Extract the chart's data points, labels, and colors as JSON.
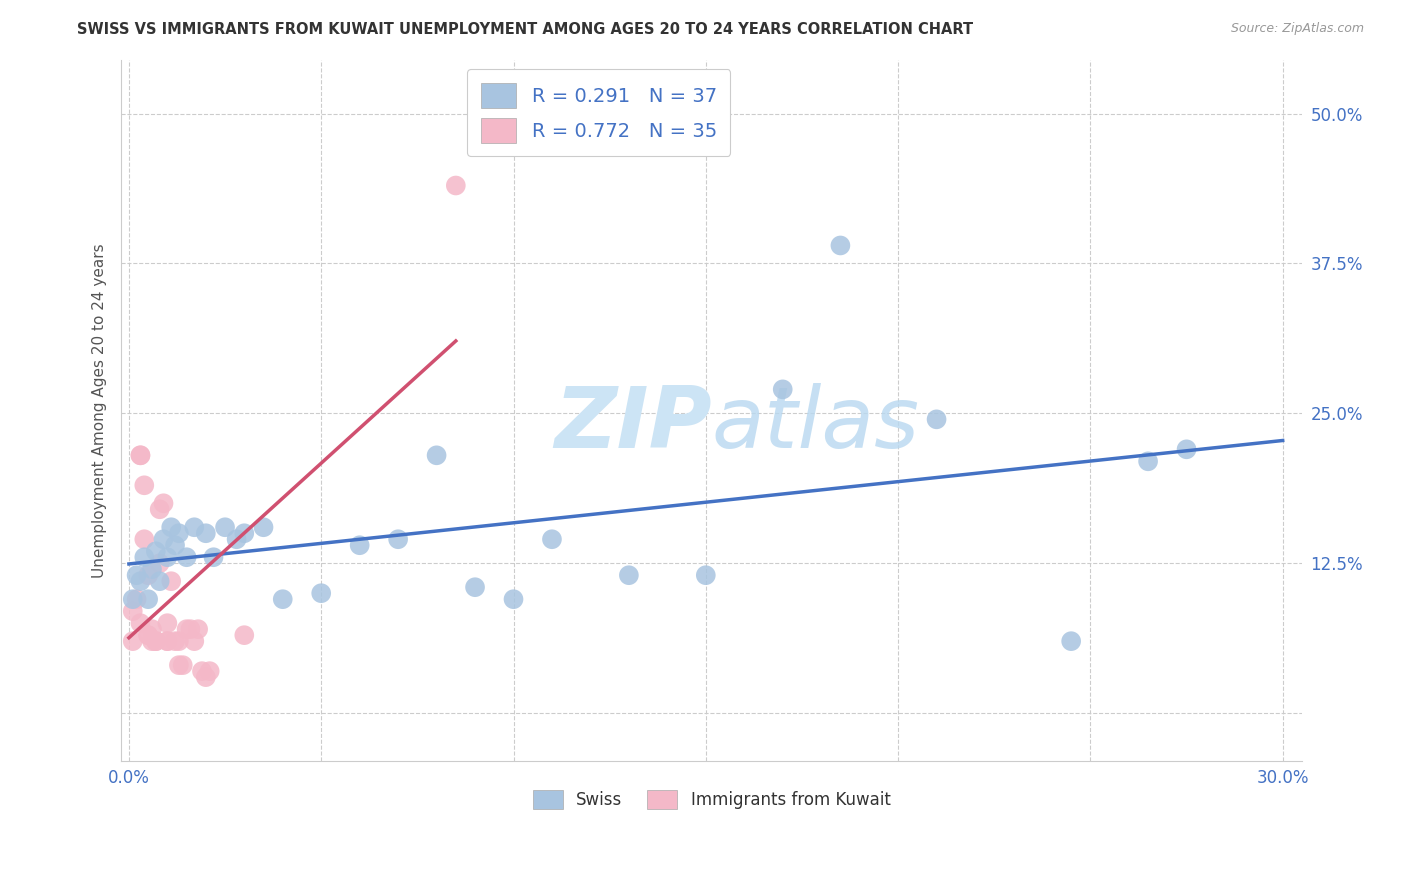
{
  "title": "SWISS VS IMMIGRANTS FROM KUWAIT UNEMPLOYMENT AMONG AGES 20 TO 24 YEARS CORRELATION CHART",
  "source": "Source: ZipAtlas.com",
  "ylabel": "Unemployment Among Ages 20 to 24 years",
  "xlim": [
    -0.002,
    0.305
  ],
  "ylim": [
    -0.04,
    0.545
  ],
  "xticks": [
    0.0,
    0.05,
    0.1,
    0.15,
    0.2,
    0.25,
    0.3
  ],
  "yticks": [
    0.0,
    0.125,
    0.25,
    0.375,
    0.5
  ],
  "swiss_R": 0.291,
  "swiss_N": 37,
  "kuwait_R": 0.772,
  "kuwait_N": 35,
  "swiss_color": "#a8c4e0",
  "kuwait_color": "#f4b8c8",
  "swiss_line_color": "#4472c4",
  "kuwait_line_color": "#d05070",
  "background_color": "#ffffff",
  "grid_color": "#cccccc",
  "watermark_color": "#cce4f5",
  "swiss_x": [
    0.001,
    0.002,
    0.003,
    0.004,
    0.005,
    0.006,
    0.007,
    0.008,
    0.009,
    0.01,
    0.011,
    0.012,
    0.013,
    0.015,
    0.017,
    0.02,
    0.022,
    0.025,
    0.028,
    0.03,
    0.035,
    0.04,
    0.05,
    0.06,
    0.07,
    0.08,
    0.09,
    0.1,
    0.11,
    0.13,
    0.15,
    0.17,
    0.185,
    0.21,
    0.245,
    0.265,
    0.275
  ],
  "swiss_y": [
    0.095,
    0.115,
    0.11,
    0.13,
    0.095,
    0.12,
    0.135,
    0.11,
    0.145,
    0.13,
    0.155,
    0.14,
    0.15,
    0.13,
    0.155,
    0.15,
    0.13,
    0.155,
    0.145,
    0.15,
    0.155,
    0.095,
    0.1,
    0.14,
    0.145,
    0.215,
    0.105,
    0.095,
    0.145,
    0.115,
    0.115,
    0.27,
    0.39,
    0.245,
    0.06,
    0.21,
    0.22
  ],
  "kuwait_x": [
    0.001,
    0.001,
    0.002,
    0.003,
    0.003,
    0.003,
    0.004,
    0.004,
    0.005,
    0.005,
    0.005,
    0.006,
    0.006,
    0.007,
    0.007,
    0.008,
    0.008,
    0.009,
    0.01,
    0.01,
    0.01,
    0.011,
    0.012,
    0.013,
    0.013,
    0.014,
    0.015,
    0.016,
    0.017,
    0.018,
    0.019,
    0.02,
    0.021,
    0.03,
    0.085
  ],
  "kuwait_y": [
    0.085,
    0.06,
    0.095,
    0.215,
    0.215,
    0.075,
    0.145,
    0.19,
    0.065,
    0.065,
    0.115,
    0.06,
    0.07,
    0.06,
    0.06,
    0.125,
    0.17,
    0.175,
    0.06,
    0.075,
    0.06,
    0.11,
    0.06,
    0.06,
    0.04,
    0.04,
    0.07,
    0.07,
    0.06,
    0.07,
    0.035,
    0.03,
    0.035,
    0.065,
    0.44
  ]
}
